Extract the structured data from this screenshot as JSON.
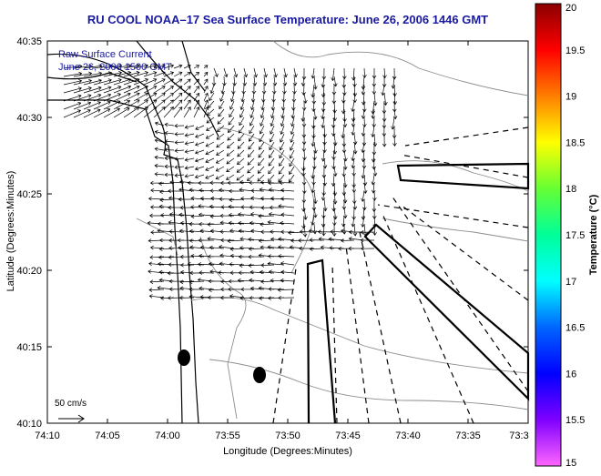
{
  "title": "RU COOL  NOAA–17  Sea Surface Temperature:  June 26, 2006 1446 GMT",
  "annotation_line1": "Raw Surface Current",
  "annotation_line2": "June 26, 2006 1500 GMT",
  "scale_label": "50 cm/s",
  "x_axis": {
    "label": "Longitude (Degrees:Minutes)",
    "ticks": [
      "74:10",
      "74:05",
      "74:00",
      "73:55",
      "73:50",
      "73:45",
      "73:40",
      "73:35",
      "73:3"
    ]
  },
  "y_axis": {
    "label": "Latitude (Degrees:Minutes)",
    "ticks": [
      "40:35",
      "40:30",
      "40:25",
      "40:20",
      "40:15",
      "40:10"
    ]
  },
  "colorbar": {
    "label": "Temperature (°C)",
    "ticks": [
      "20",
      "19.5",
      "19",
      "18.5",
      "18",
      "17.5",
      "17",
      "16.5",
      "16",
      "15.5",
      "15"
    ],
    "stops": [
      "#8b0000",
      "#ff0000",
      "#ff7f00",
      "#ffff00",
      "#66ff33",
      "#00ff99",
      "#00ffff",
      "#0066ff",
      "#0000ff",
      "#7f00ff",
      "#ff66ff"
    ]
  },
  "map_colors": {
    "land_line": "#000000",
    "bathymetry": "#8c8c8c",
    "vectors": "#000000"
  },
  "vector_field_description": "Surface current vectors concentrated near harbor entrance and northern bay",
  "icons": [
    "scale-arrow-icon",
    "buoy-marker-icon"
  ]
}
